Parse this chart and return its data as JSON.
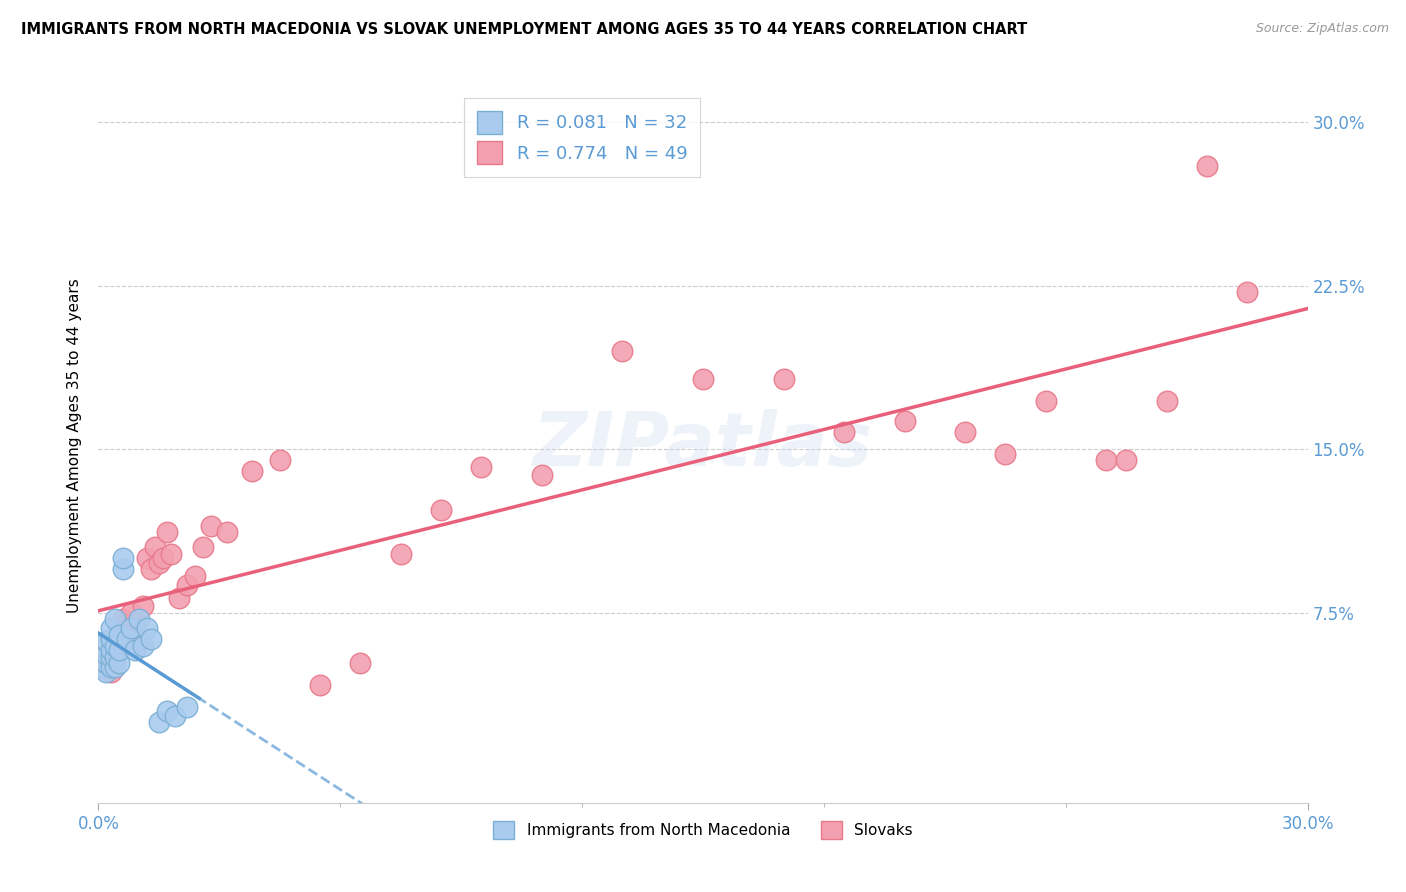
{
  "title": "IMMIGRANTS FROM NORTH MACEDONIA VS SLOVAK UNEMPLOYMENT AMONG AGES 35 TO 44 YEARS CORRELATION CHART",
  "source": "Source: ZipAtlas.com",
  "ylabel_label": "Unemployment Among Ages 35 to 44 years",
  "legend1_r": "0.081",
  "legend1_n": "32",
  "legend2_r": "0.774",
  "legend2_n": "49",
  "legend_label1": "Immigrants from North Macedonia",
  "legend_label2": "Slovaks",
  "watermark": "ZIPatlas",
  "blue_line_color": "#5b9bd5",
  "pink_line_color": "#e8607a",
  "blue_marker_facecolor": "#aacbee",
  "blue_marker_edgecolor": "#7aafd4",
  "pink_marker_facecolor": "#f2a0b0",
  "pink_marker_edgecolor": "#e8788a",
  "xmin": 0.0,
  "xmax": 0.3,
  "ymin": -0.012,
  "ymax": 0.315,
  "ytick_positions": [
    0.075,
    0.15,
    0.225,
    0.3
  ],
  "ytick_labels": [
    "7.5%",
    "15.0%",
    "22.5%",
    "30.0%"
  ],
  "blue_scatter_x": [
    0.001,
    0.001,
    0.001,
    0.002,
    0.002,
    0.002,
    0.002,
    0.003,
    0.003,
    0.003,
    0.003,
    0.003,
    0.004,
    0.004,
    0.004,
    0.004,
    0.005,
    0.005,
    0.005,
    0.006,
    0.006,
    0.007,
    0.008,
    0.009,
    0.01,
    0.011,
    0.012,
    0.013,
    0.015,
    0.017,
    0.019,
    0.022
  ],
  "blue_scatter_y": [
    0.05,
    0.055,
    0.06,
    0.048,
    0.052,
    0.056,
    0.062,
    0.05,
    0.055,
    0.058,
    0.063,
    0.068,
    0.05,
    0.055,
    0.06,
    0.072,
    0.052,
    0.058,
    0.065,
    0.095,
    0.1,
    0.063,
    0.068,
    0.058,
    0.072,
    0.06,
    0.068,
    0.063,
    0.025,
    0.03,
    0.028,
    0.032
  ],
  "pink_scatter_x": [
    0.001,
    0.002,
    0.003,
    0.003,
    0.004,
    0.004,
    0.005,
    0.005,
    0.006,
    0.006,
    0.007,
    0.008,
    0.009,
    0.01,
    0.011,
    0.012,
    0.013,
    0.014,
    0.015,
    0.016,
    0.017,
    0.018,
    0.02,
    0.022,
    0.024,
    0.026,
    0.028,
    0.032,
    0.038,
    0.045,
    0.055,
    0.065,
    0.075,
    0.085,
    0.095,
    0.11,
    0.13,
    0.15,
    0.17,
    0.185,
    0.2,
    0.215,
    0.225,
    0.235,
    0.25,
    0.255,
    0.265,
    0.275,
    0.285
  ],
  "pink_scatter_y": [
    0.05,
    0.055,
    0.048,
    0.058,
    0.052,
    0.062,
    0.06,
    0.068,
    0.065,
    0.072,
    0.07,
    0.075,
    0.068,
    0.062,
    0.078,
    0.1,
    0.095,
    0.105,
    0.098,
    0.1,
    0.112,
    0.102,
    0.082,
    0.088,
    0.092,
    0.105,
    0.115,
    0.112,
    0.14,
    0.145,
    0.042,
    0.052,
    0.102,
    0.122,
    0.142,
    0.138,
    0.195,
    0.182,
    0.182,
    0.158,
    0.163,
    0.158,
    0.148,
    0.172,
    0.145,
    0.145,
    0.172,
    0.28,
    0.222
  ]
}
